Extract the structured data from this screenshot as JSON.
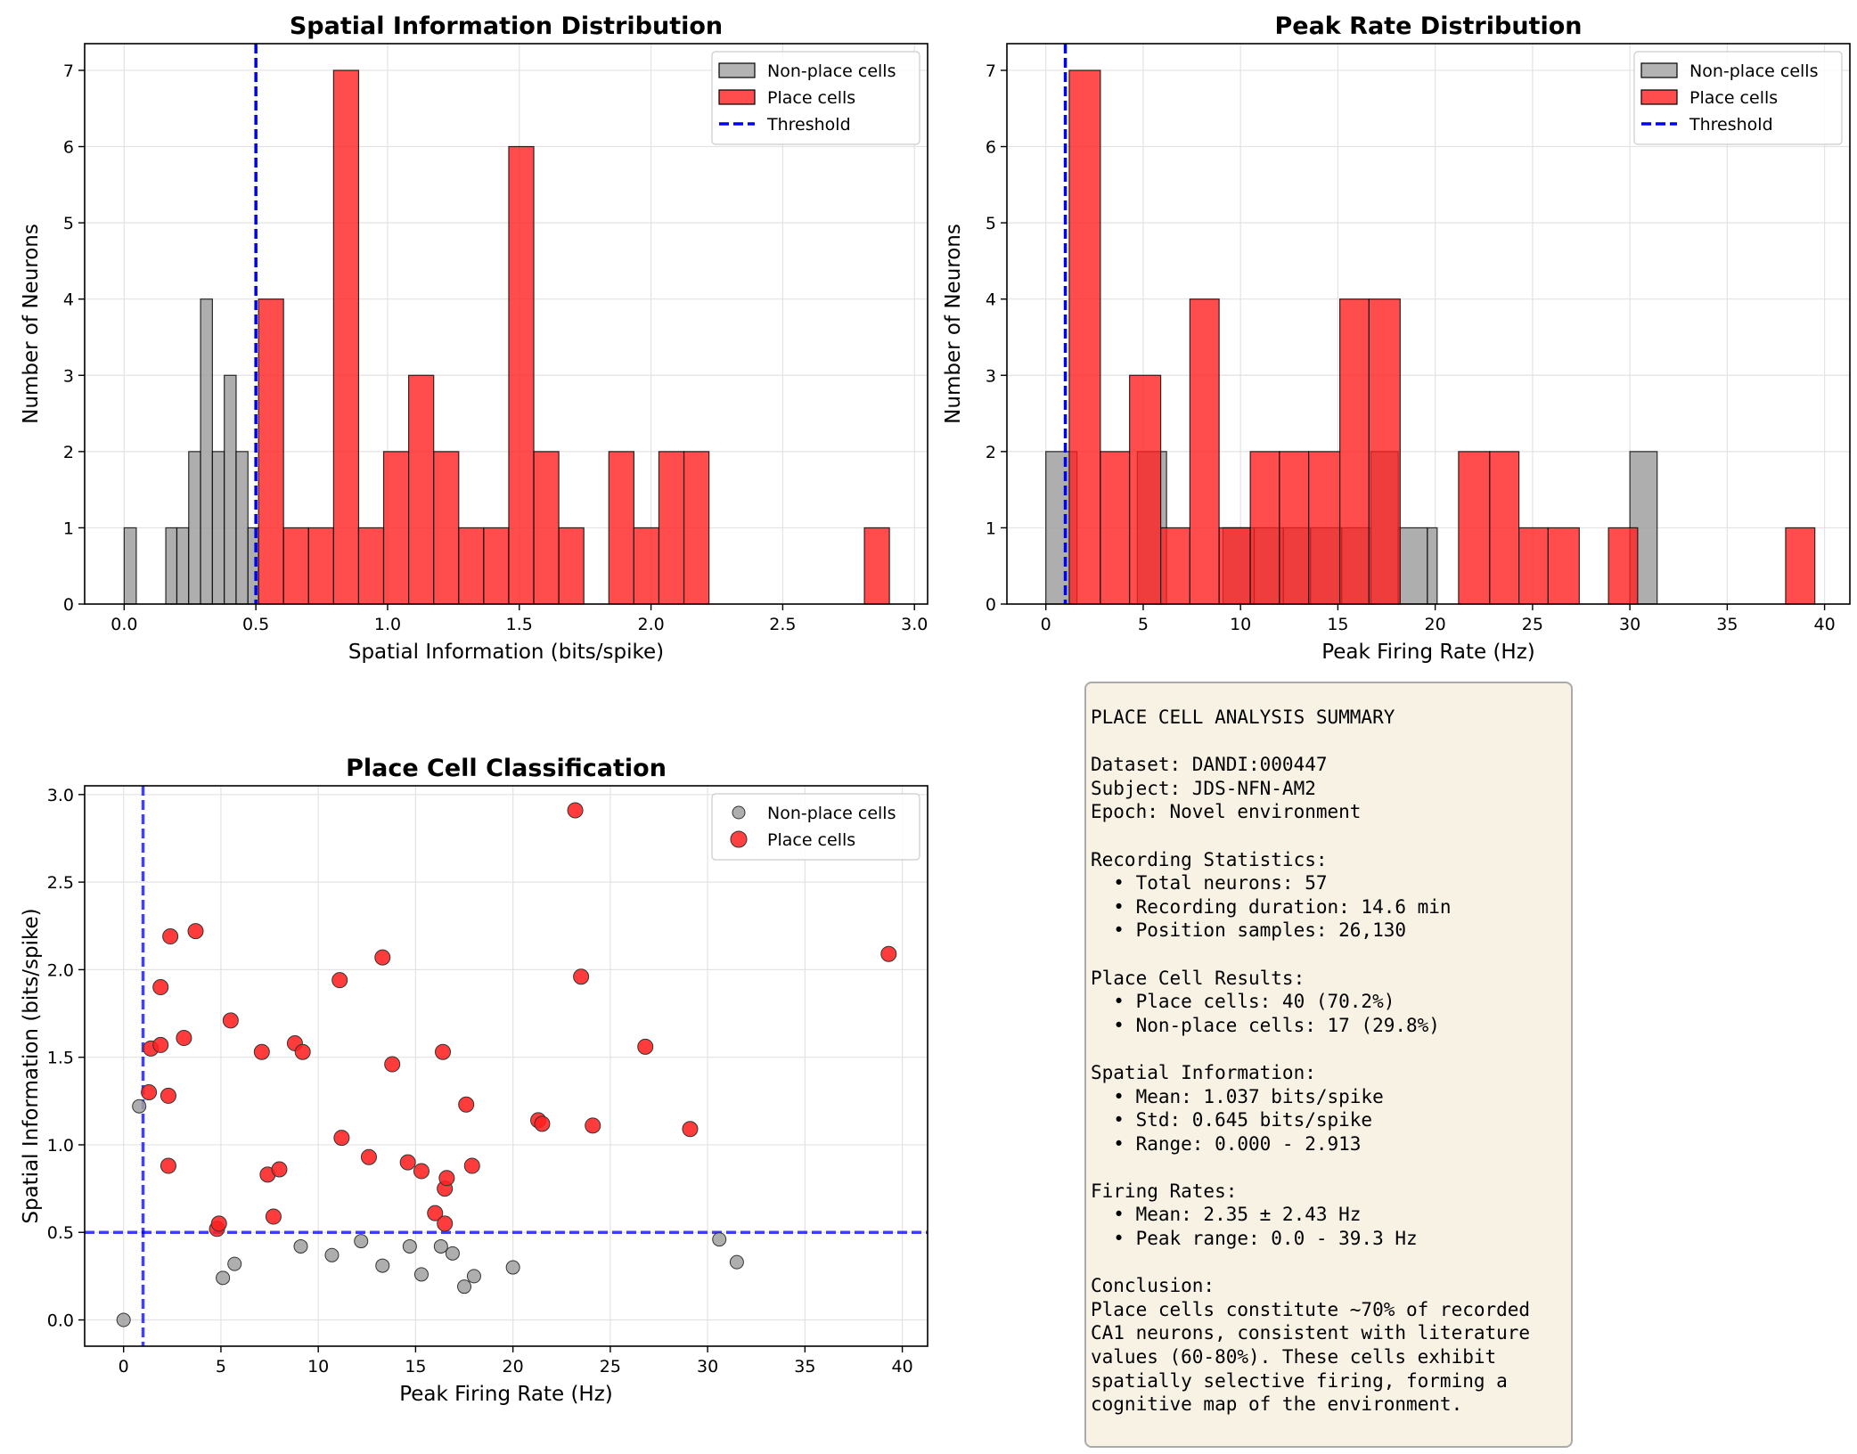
{
  "chart_data": [
    {
      "type": "histogram",
      "title": "Spatial Information Distribution",
      "xlabel": "Spatial Information (bits/spike)",
      "ylabel": "Number of Neurons",
      "xlim": [
        -0.15,
        3.05
      ],
      "ylim": [
        0,
        7.35
      ],
      "xticks": [
        "0.0",
        "0.5",
        "1.0",
        "1.5",
        "2.0",
        "2.5",
        "3.0"
      ],
      "xtick_values": [
        0.0,
        0.5,
        1.0,
        1.5,
        2.0,
        2.5,
        3.0
      ],
      "yticks": [
        0,
        1,
        2,
        3,
        4,
        5,
        6,
        7
      ],
      "threshold": 0.5,
      "legend_position": "top-right",
      "legend": [
        "Non-place cells",
        "Place cells",
        "Threshold"
      ],
      "series": [
        {
          "name": "Non-place cells",
          "color": "#a0a0a0",
          "bins": [
            {
              "x0": 0.0,
              "x1": 0.046,
              "count": 1
            },
            {
              "x0": 0.158,
              "x1": 0.2,
              "count": 1
            },
            {
              "x0": 0.2,
              "x1": 0.245,
              "count": 1
            },
            {
              "x0": 0.245,
              "x1": 0.29,
              "count": 2
            },
            {
              "x0": 0.29,
              "x1": 0.335,
              "count": 4
            },
            {
              "x0": 0.335,
              "x1": 0.38,
              "count": 2
            },
            {
              "x0": 0.38,
              "x1": 0.425,
              "count": 3
            },
            {
              "x0": 0.425,
              "x1": 0.47,
              "count": 2
            },
            {
              "x0": 0.47,
              "x1": 0.51,
              "count": 1
            }
          ]
        },
        {
          "name": "Place cells",
          "color": "#ff2020",
          "bins": [
            {
              "x0": 0.51,
              "x1": 0.605,
              "count": 4
            },
            {
              "x0": 0.605,
              "x1": 0.7,
              "count": 1
            },
            {
              "x0": 0.7,
              "x1": 0.795,
              "count": 1
            },
            {
              "x0": 0.795,
              "x1": 0.89,
              "count": 7
            },
            {
              "x0": 0.89,
              "x1": 0.985,
              "count": 1
            },
            {
              "x0": 0.985,
              "x1": 1.08,
              "count": 2
            },
            {
              "x0": 1.08,
              "x1": 1.175,
              "count": 3
            },
            {
              "x0": 1.175,
              "x1": 1.27,
              "count": 2
            },
            {
              "x0": 1.27,
              "x1": 1.365,
              "count": 1
            },
            {
              "x0": 1.365,
              "x1": 1.46,
              "count": 1
            },
            {
              "x0": 1.46,
              "x1": 1.555,
              "count": 6
            },
            {
              "x0": 1.555,
              "x1": 1.65,
              "count": 2
            },
            {
              "x0": 1.65,
              "x1": 1.745,
              "count": 1
            },
            {
              "x0": 1.84,
              "x1": 1.935,
              "count": 2
            },
            {
              "x0": 1.935,
              "x1": 2.03,
              "count": 1
            },
            {
              "x0": 2.03,
              "x1": 2.125,
              "count": 2
            },
            {
              "x0": 2.125,
              "x1": 2.22,
              "count": 2
            },
            {
              "x0": 2.81,
              "x1": 2.905,
              "count": 1
            }
          ]
        }
      ]
    },
    {
      "type": "histogram",
      "title": "Peak Rate Distribution",
      "xlabel": "Peak Firing Rate (Hz)",
      "ylabel": "Number of Neurons",
      "xlim": [
        -2,
        41.3
      ],
      "ylim": [
        0,
        7.35
      ],
      "xticks": [
        "0",
        "5",
        "10",
        "15",
        "20",
        "25",
        "30",
        "35",
        "40"
      ],
      "xtick_values": [
        0,
        5,
        10,
        15,
        20,
        25,
        30,
        35,
        40
      ],
      "yticks": [
        0,
        1,
        2,
        3,
        4,
        5,
        6,
        7
      ],
      "threshold": 1.0,
      "legend_position": "top-right",
      "legend": [
        "Non-place cells",
        "Place cells",
        "Threshold"
      ],
      "series": [
        {
          "name": "Non-place cells",
          "color": "#a0a0a0",
          "bins": [
            {
              "x0": 0.0,
              "x1": 1.6,
              "count": 2
            },
            {
              "x0": 4.7,
              "x1": 6.2,
              "count": 2
            },
            {
              "x0": 9.1,
              "x1": 10.7,
              "count": 1
            },
            {
              "x0": 10.7,
              "x1": 12.2,
              "count": 1
            },
            {
              "x0": 12.2,
              "x1": 13.6,
              "count": 1
            },
            {
              "x0": 13.6,
              "x1": 15.2,
              "count": 1
            },
            {
              "x0": 15.2,
              "x1": 16.7,
              "count": 1
            },
            {
              "x0": 16.7,
              "x1": 18.1,
              "count": 2
            },
            {
              "x0": 18.1,
              "x1": 19.6,
              "count": 1
            },
            {
              "x0": 19.6,
              "x1": 20.1,
              "count": 1
            },
            {
              "x0": 30.0,
              "x1": 31.4,
              "count": 2
            }
          ]
        },
        {
          "name": "Place cells",
          "color": "#ff2020",
          "bins": [
            {
              "x0": 1.2,
              "x1": 2.8,
              "count": 7
            },
            {
              "x0": 2.8,
              "x1": 4.3,
              "count": 2
            },
            {
              "x0": 4.3,
              "x1": 5.9,
              "count": 3
            },
            {
              "x0": 5.9,
              "x1": 7.4,
              "count": 1
            },
            {
              "x0": 7.4,
              "x1": 8.9,
              "count": 4
            },
            {
              "x0": 8.9,
              "x1": 10.5,
              "count": 1
            },
            {
              "x0": 10.5,
              "x1": 12.0,
              "count": 2
            },
            {
              "x0": 12.0,
              "x1": 13.5,
              "count": 2
            },
            {
              "x0": 13.5,
              "x1": 15.1,
              "count": 2
            },
            {
              "x0": 15.1,
              "x1": 16.6,
              "count": 4
            },
            {
              "x0": 16.6,
              "x1": 18.2,
              "count": 4
            },
            {
              "x0": 21.2,
              "x1": 22.8,
              "count": 2
            },
            {
              "x0": 22.8,
              "x1": 24.3,
              "count": 2
            },
            {
              "x0": 24.3,
              "x1": 25.8,
              "count": 1
            },
            {
              "x0": 25.8,
              "x1": 27.4,
              "count": 1
            },
            {
              "x0": 28.9,
              "x1": 30.4,
              "count": 1
            },
            {
              "x0": 38.0,
              "x1": 39.5,
              "count": 1
            }
          ]
        }
      ]
    },
    {
      "type": "scatter",
      "title": "Place Cell Classification",
      "xlabel": "Peak Firing Rate (Hz)",
      "ylabel": "Spatial Information (bits/spike)",
      "xlim": [
        -2,
        41.3
      ],
      "ylim": [
        -0.15,
        3.05
      ],
      "xticks": [
        "0",
        "5",
        "10",
        "15",
        "20",
        "25",
        "30",
        "35",
        "40"
      ],
      "xtick_values": [
        0,
        5,
        10,
        15,
        20,
        25,
        30,
        35,
        40
      ],
      "yticks": [
        "0.0",
        "0.5",
        "1.0",
        "1.5",
        "2.0",
        "2.5",
        "3.0"
      ],
      "ytick_values": [
        0.0,
        0.5,
        1.0,
        1.5,
        2.0,
        2.5,
        3.0
      ],
      "threshold_x": 1.0,
      "threshold_y": 0.5,
      "legend_position": "top-right",
      "legend": [
        "Non-place cells",
        "Place cells"
      ],
      "series": [
        {
          "name": "Non-place cells",
          "color": "#a0a0a0",
          "points": [
            [
              0.0,
              0.0
            ],
            [
              0.8,
              1.22
            ],
            [
              5.1,
              0.24
            ],
            [
              5.7,
              0.32
            ],
            [
              9.1,
              0.42
            ],
            [
              10.7,
              0.37
            ],
            [
              12.2,
              0.45
            ],
            [
              13.3,
              0.31
            ],
            [
              14.7,
              0.42
            ],
            [
              15.3,
              0.26
            ],
            [
              16.3,
              0.42
            ],
            [
              16.9,
              0.38
            ],
            [
              17.5,
              0.19
            ],
            [
              18.0,
              0.25
            ],
            [
              20.0,
              0.3
            ],
            [
              30.6,
              0.46
            ],
            [
              31.5,
              0.33
            ]
          ]
        },
        {
          "name": "Place cells",
          "color": "#ff2020",
          "points": [
            [
              1.3,
              1.3
            ],
            [
              1.4,
              1.55
            ],
            [
              1.9,
              1.9
            ],
            [
              1.9,
              1.57
            ],
            [
              2.3,
              0.88
            ],
            [
              2.3,
              1.28
            ],
            [
              2.4,
              2.19
            ],
            [
              3.1,
              1.61
            ],
            [
              3.7,
              2.22
            ],
            [
              4.8,
              0.52
            ],
            [
              4.9,
              0.55
            ],
            [
              5.5,
              1.71
            ],
            [
              7.1,
              1.53
            ],
            [
              7.4,
              0.83
            ],
            [
              7.7,
              0.59
            ],
            [
              8.0,
              0.86
            ],
            [
              8.8,
              1.58
            ],
            [
              9.2,
              1.53
            ],
            [
              11.1,
              1.94
            ],
            [
              11.2,
              1.04
            ],
            [
              12.6,
              0.93
            ],
            [
              13.3,
              2.07
            ],
            [
              13.8,
              1.46
            ],
            [
              14.6,
              0.9
            ],
            [
              15.3,
              0.85
            ],
            [
              16.0,
              0.61
            ],
            [
              16.4,
              1.53
            ],
            [
              16.5,
              0.55
            ],
            [
              16.5,
              0.75
            ],
            [
              16.6,
              0.81
            ],
            [
              17.6,
              1.23
            ],
            [
              17.9,
              0.88
            ],
            [
              21.3,
              1.14
            ],
            [
              21.5,
              1.12
            ],
            [
              23.2,
              2.91
            ],
            [
              23.5,
              1.96
            ],
            [
              24.1,
              1.11
            ],
            [
              26.8,
              1.56
            ],
            [
              29.1,
              1.09
            ],
            [
              39.3,
              2.09
            ]
          ]
        }
      ]
    }
  ],
  "summary": {
    "lines": [
      "PLACE CELL ANALYSIS SUMMARY",
      "",
      "Dataset: DANDI:000447",
      "Subject: JDS-NFN-AM2",
      "Epoch: Novel environment",
      "",
      "Recording Statistics:",
      "  • Total neurons: 57",
      "  • Recording duration: 14.6 min",
      "  • Position samples: 26,130",
      "",
      "Place Cell Results:",
      "  • Place cells: 40 (70.2%)",
      "  • Non-place cells: 17 (29.8%)",
      "",
      "Spatial Information:",
      "  • Mean: 1.037 bits/spike",
      "  • Std: 0.645 bits/spike",
      "  • Range: 0.000 - 2.913",
      "",
      "Firing Rates:",
      "  • Mean: 2.35 ± 2.43 Hz",
      "  • Peak range: 0.0 - 39.3 Hz",
      "",
      "Conclusion:",
      "Place cells constitute ~70% of recorded",
      "CA1 neurons, consistent with literature",
      "values (60-80%). These cells exhibit",
      "spatially selective firing, forming a",
      "cognitive map of the environment."
    ]
  }
}
